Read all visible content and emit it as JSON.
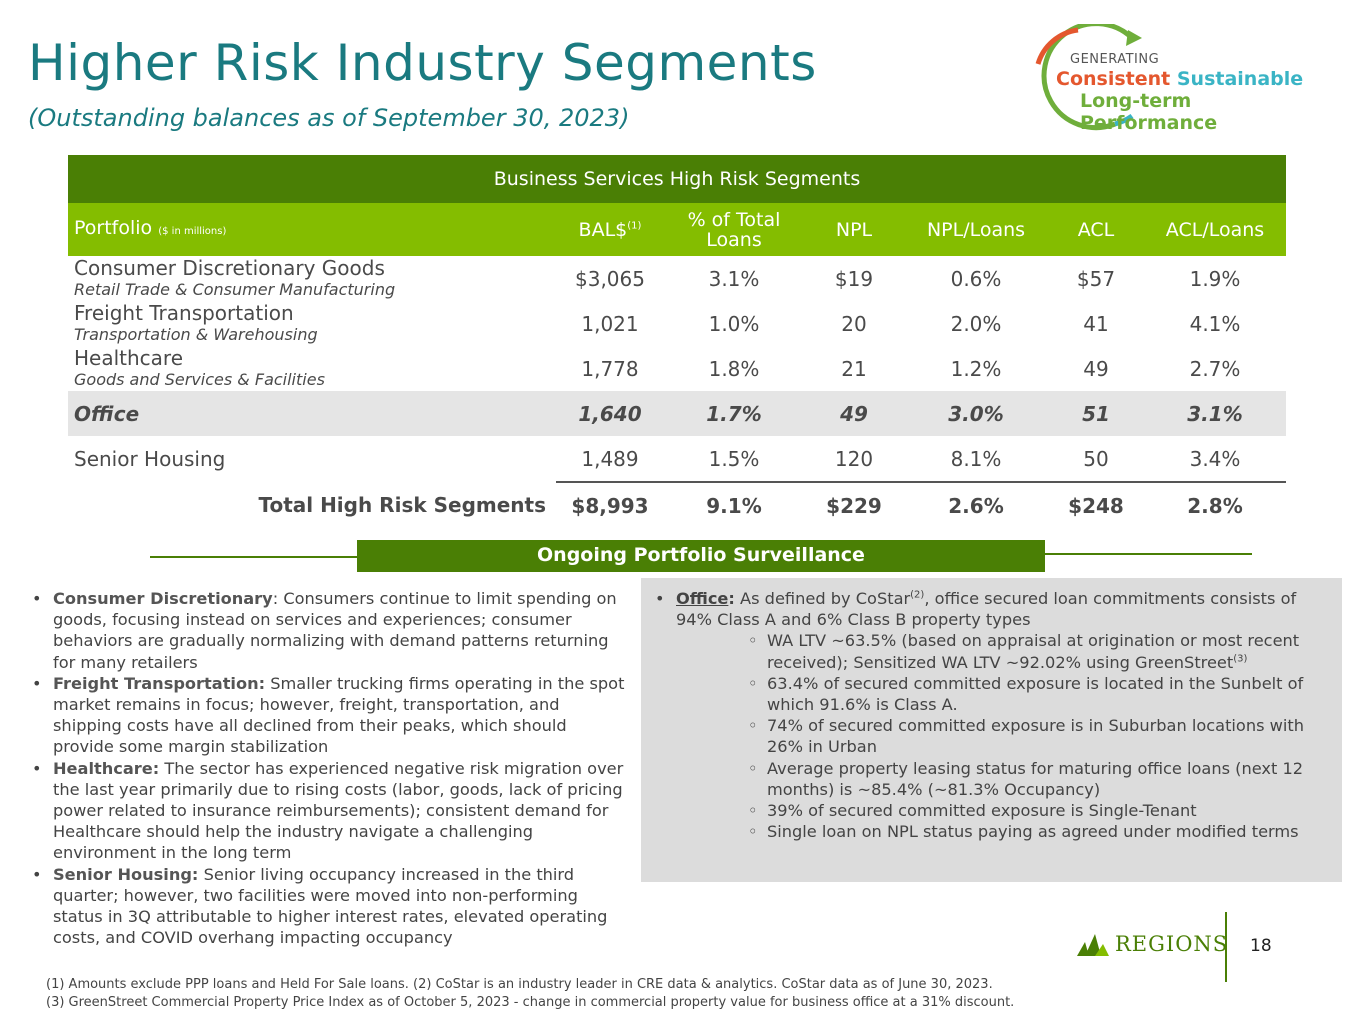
{
  "header": {
    "title": "Higher Risk Industry Segments",
    "subtitle": "(Outstanding balances as of September 30, 2023)"
  },
  "logo": {
    "line1": "GENERATING",
    "line2a": "Consistent",
    "line2b": "Sustainable",
    "line3": "Long-term Performance",
    "colors": {
      "orange": "#e4572e",
      "teal": "#3ab4c5",
      "green": "#6fae3b"
    }
  },
  "table": {
    "title": "Business Services High Risk Segments",
    "col_portfolio": "Portfolio",
    "col_portfolio_note": "($ in millions)",
    "col_bal": "BAL$",
    "col_bal_sup": "(1)",
    "col_pct_total": "% of Total Loans",
    "col_npl": "NPL",
    "col_npl_loans": "NPL/Loans",
    "col_acl": "ACL",
    "col_acl_loans": "ACL/Loans",
    "rows": [
      {
        "name": "Consumer Discretionary Goods",
        "sub": "Retail Trade & Consumer Manufacturing",
        "bal": "$3,065",
        "pct": "3.1%",
        "npl": "$19",
        "npl_loans": "0.6%",
        "acl": "$57",
        "acl_loans": "1.9%"
      },
      {
        "name": "Freight Transportation",
        "sub": "Transportation & Warehousing",
        "bal": "1,021",
        "pct": "1.0%",
        "npl": "20",
        "npl_loans": "2.0%",
        "acl": "41",
        "acl_loans": "4.1%"
      },
      {
        "name": "Healthcare",
        "sub": "Goods and Services & Facilities",
        "bal": "1,778",
        "pct": "1.8%",
        "npl": "21",
        "npl_loans": "1.2%",
        "acl": "49",
        "acl_loans": "2.7%"
      },
      {
        "name": "Office",
        "sub": "",
        "bal": "1,640",
        "pct": "1.7%",
        "npl": "49",
        "npl_loans": "3.0%",
        "acl": "51",
        "acl_loans": "3.1%"
      },
      {
        "name": "Senior Housing",
        "sub": "",
        "bal": "1,489",
        "pct": "1.5%",
        "npl": "120",
        "npl_loans": "8.1%",
        "acl": "50",
        "acl_loans": "3.4%"
      }
    ],
    "total": {
      "label": "Total High Risk Segments",
      "bal": "$8,993",
      "pct": "9.1%",
      "npl": "$229",
      "npl_loans": "2.6%",
      "acl": "$248",
      "acl_loans": "2.8%"
    }
  },
  "banner": "Ongoing Portfolio Surveillance",
  "left_bullets": [
    {
      "label": "Consumer Discretionary",
      "sep": ": ",
      "text": "Consumers continue to limit spending on goods, focusing instead on services and experiences; consumer behaviors are gradually normalizing with demand patterns returning for many retailers"
    },
    {
      "label": "Freight Transportation:",
      "sep": " ",
      "text": "Smaller trucking firms operating in the spot market remains in focus; however, freight, transportation, and shipping costs have all declined from their peaks, which should provide some margin stabilization"
    },
    {
      "label": "Healthcare:",
      "sep": " ",
      "text": "The sector has experienced negative risk migration over the last year primarily due to rising costs (labor, goods, lack of pricing power related to insurance reimbursements); consistent demand for Healthcare should help the industry navigate a challenging environment in the long term"
    },
    {
      "label": "Senior Housing:",
      "sep": " ",
      "text": "Senior living occupancy increased in the third quarter; however, two facilities were moved into non-performing status in 3Q attributable to higher interest rates, elevated operating costs, and COVID overhang impacting occupancy"
    }
  ],
  "office_box": {
    "label": "Office",
    "colon": ":",
    "text_a": " As defined by CoStar",
    "sup_a": "(2)",
    "text_b": ", office secured loan commitments consists of 94% Class A and 6% Class B property types",
    "sub_first_a": "WA LTV ~63.5% (based on appraisal at origination or most recent received); Sensitized WA LTV ~92.02% using GreenStreet",
    "sub_first_sup": "(3)",
    "sub_items": [
      "63.4% of secured committed exposure is located in the Sunbelt of which 91.6% is Class A.",
      "74% of secured committed exposure is in Suburban locations with 26% in Urban",
      "Average property leasing status for maturing office loans (next 12 months) is ~85.4% (~81.3% Occupancy)",
      "39% of secured committed exposure is Single-Tenant",
      "Single loan on NPL status paying as agreed under modified terms"
    ]
  },
  "brand": {
    "name": "REGIONS",
    "green": "#4a7f05"
  },
  "page_number": "18",
  "footnote1": "(1) Amounts exclude PPP loans and Held For Sale loans. (2) CoStar is an industry leader in CRE data & analytics. CoStar data as of June 30, 2023.",
  "footnote2": "(3) GreenStreet Commercial Property Price Index as of October 5, 2023 - change in commercial property value for business office at a 31% discount."
}
